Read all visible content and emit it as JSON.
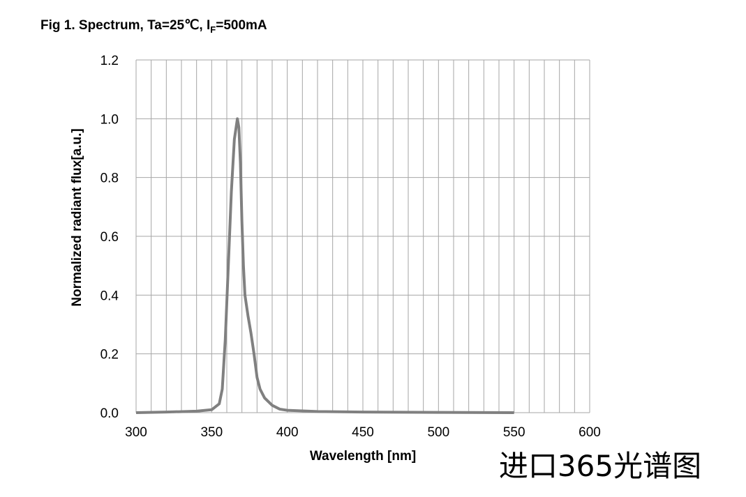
{
  "chart_data": {
    "type": "line",
    "title": "Fig 1. Spectrum, Ta=25℃, I",
    "title_subscript": "F",
    "title_suffix": "=500mA",
    "x_label": "Wavelength [nm]",
    "y_label": "Normalized radiant flux[a.u.]",
    "annotation": "进口365光谱图",
    "x": [
      300,
      320,
      340,
      350,
      355,
      357,
      359,
      361,
      363,
      365,
      367,
      368,
      369,
      370,
      371,
      372,
      374,
      376,
      378,
      380,
      382,
      385,
      390,
      395,
      400,
      420,
      450,
      500,
      550
    ],
    "series": [
      {
        "color": "#808080",
        "values": [
          0.0,
          0.002,
          0.005,
          0.01,
          0.03,
          0.08,
          0.25,
          0.5,
          0.75,
          0.93,
          1.0,
          0.97,
          0.85,
          0.65,
          0.5,
          0.4,
          0.33,
          0.27,
          0.2,
          0.12,
          0.08,
          0.05,
          0.025,
          0.012,
          0.008,
          0.004,
          0.002,
          0.001,
          0.0
        ]
      }
    ],
    "xlim": [
      300,
      600
    ],
    "ylim": [
      0,
      1.2
    ],
    "xticks": [
      300,
      350,
      400,
      450,
      500,
      550,
      600
    ],
    "yticks": [
      {
        "value": 0,
        "label": "0.0"
      },
      {
        "value": 0.2,
        "label": "0.2"
      },
      {
        "value": 0.4,
        "label": "0.4"
      },
      {
        "value": 0.6,
        "label": "0.6"
      },
      {
        "value": 0.8,
        "label": "0.8"
      },
      {
        "value": 1,
        "label": "1.0"
      },
      {
        "value": 1.2,
        "label": "1.2"
      }
    ],
    "x_grid": [
      310,
      320,
      330,
      340,
      360,
      370,
      380,
      390,
      410,
      420,
      430,
      440,
      460,
      470,
      480,
      490,
      510,
      520,
      530,
      540,
      560,
      570,
      580,
      590
    ],
    "grid": true
  }
}
